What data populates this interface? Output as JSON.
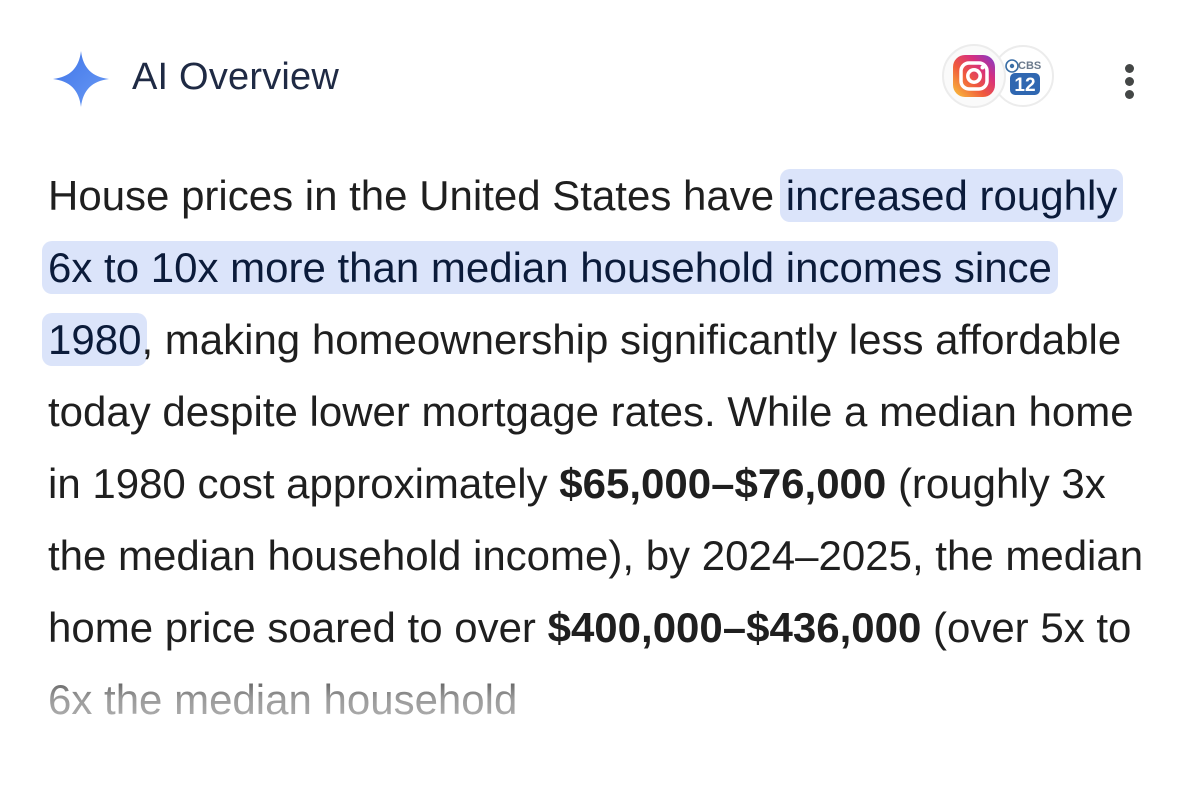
{
  "header": {
    "title": "AI Overview",
    "sparkle_icon": "sparkle-icon",
    "sources": [
      {
        "name": "Instagram",
        "icon": "instagram-icon"
      },
      {
        "name": "CBS 12",
        "icon": "cbs12-icon",
        "badge_top": "CBS",
        "badge_number": "12"
      }
    ],
    "more_icon": "more-vertical-icon"
  },
  "overview": {
    "intro": "House prices in the United States have ",
    "highlight": "increased roughly 6x to 10x more than median household incomes since 1980",
    "part2": ", making homeownership significantly less affordable today despite lower mortgage rates. While a median home in 1980 cost approximately ",
    "price_1980": "$65,000–$76,000",
    "part3": " (roughly 3x the median household income), by 2024–2025, the median home price soared to over ",
    "price_2024": "$400,000–$436,000",
    "part4": " (over 5x to 6x the median household"
  },
  "colors": {
    "highlight_bg": "#dbe4fa",
    "sparkle": "#4a7df0",
    "text": "#1f1f1f"
  }
}
